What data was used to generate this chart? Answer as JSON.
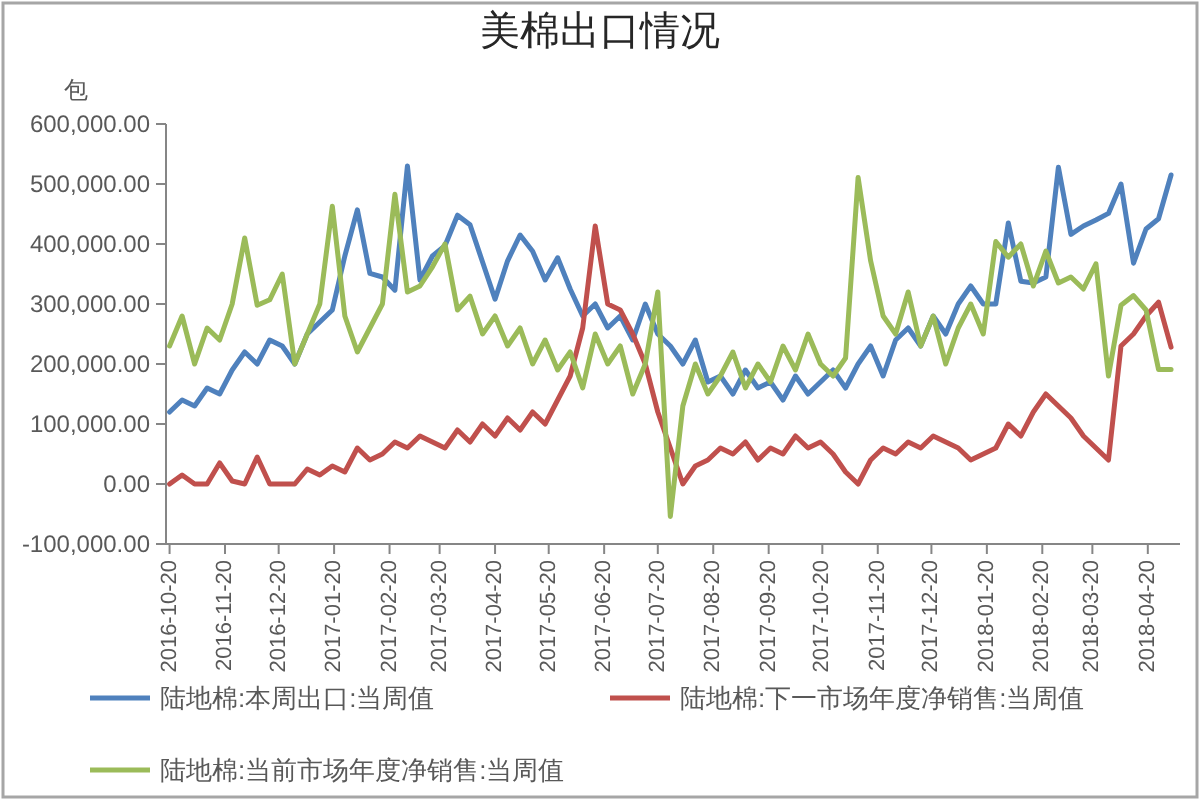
{
  "chart_data": {
    "type": "line",
    "title": "美棉出口情况",
    "ylabel": "包",
    "x": [
      "2016-10-20",
      "2016-10-27",
      "2016-11-03",
      "2016-11-10",
      "2016-11-17",
      "2016-11-24",
      "2016-12-01",
      "2016-12-08",
      "2016-12-15",
      "2016-12-22",
      "2016-12-29",
      "2017-01-05",
      "2017-01-12",
      "2017-01-19",
      "2017-01-26",
      "2017-02-02",
      "2017-02-09",
      "2017-02-16",
      "2017-02-23",
      "2017-03-02",
      "2017-03-09",
      "2017-03-16",
      "2017-03-23",
      "2017-03-30",
      "2017-04-06",
      "2017-04-13",
      "2017-04-20",
      "2017-04-27",
      "2017-05-04",
      "2017-05-11",
      "2017-05-18",
      "2017-05-25",
      "2017-06-01",
      "2017-06-08",
      "2017-06-15",
      "2017-06-22",
      "2017-06-29",
      "2017-07-06",
      "2017-07-13",
      "2017-07-20",
      "2017-07-27",
      "2017-08-03",
      "2017-08-10",
      "2017-08-17",
      "2017-08-24",
      "2017-08-31",
      "2017-09-07",
      "2017-09-14",
      "2017-09-21",
      "2017-09-28",
      "2017-10-05",
      "2017-10-12",
      "2017-10-19",
      "2017-10-26",
      "2017-11-02",
      "2017-11-09",
      "2017-11-16",
      "2017-11-23",
      "2017-11-30",
      "2017-12-07",
      "2017-12-14",
      "2017-12-21",
      "2017-12-28",
      "2018-01-04",
      "2018-01-11",
      "2018-01-18",
      "2018-01-25",
      "2018-02-01",
      "2018-02-08",
      "2018-02-15",
      "2018-02-22",
      "2018-03-01",
      "2018-03-08",
      "2018-03-15",
      "2018-03-22",
      "2018-03-29",
      "2018-04-05",
      "2018-04-12",
      "2018-04-19",
      "2018-04-26",
      "2018-05-03"
    ],
    "xlim": [
      "2016-10-18",
      "2018-05-08"
    ],
    "xticks": [
      "2016-10-20",
      "2016-11-20",
      "2016-12-20",
      "2017-01-20",
      "2017-02-20",
      "2017-03-20",
      "2017-04-20",
      "2017-05-20",
      "2017-06-20",
      "2017-07-20",
      "2017-08-20",
      "2017-09-20",
      "2017-10-20",
      "2017-11-20",
      "2017-12-20",
      "2018-01-20",
      "2018-02-20",
      "2018-03-20",
      "2018-04-20"
    ],
    "ylim": [
      -100000,
      600000
    ],
    "yticks": [
      {
        "value": -100000,
        "label": "-100,000.00"
      },
      {
        "value": 0,
        "label": "0.00"
      },
      {
        "value": 100000,
        "label": "100,000.00"
      },
      {
        "value": 200000,
        "label": "200,000.00"
      },
      {
        "value": 300000,
        "label": "300,000.00"
      },
      {
        "value": 400000,
        "label": "400,000.00"
      },
      {
        "value": 500000,
        "label": "500,000.00"
      },
      {
        "value": 600000,
        "label": "600,000.00"
      }
    ],
    "legend": "bottom",
    "series": [
      {
        "name": "陆地棉:本周出口:当周值",
        "color": "#4f81bd",
        "values": [
          120000,
          140000,
          130000,
          160000,
          150000,
          190000,
          220000,
          200000,
          240000,
          230000,
          200000,
          250000,
          270000,
          290000,
          380000,
          457000,
          351000,
          345000,
          323000,
          530000,
          340000,
          380000,
          397000,
          448000,
          432000,
          370000,
          308000,
          372000,
          415000,
          388000,
          340000,
          377000,
          325000,
          280000,
          300000,
          260000,
          280000,
          240000,
          300000,
          250000,
          230000,
          200000,
          240000,
          170000,
          180000,
          150000,
          190000,
          160000,
          170000,
          140000,
          180000,
          150000,
          170000,
          190000,
          160000,
          200000,
          230000,
          180000,
          240000,
          260000,
          230000,
          280000,
          250000,
          300000,
          330000,
          300000,
          300000,
          435000,
          338000,
          335000,
          345000,
          528000,
          416000,
          430000,
          440000,
          451000,
          500000,
          368000,
          425000,
          442000,
          515000
        ]
      },
      {
        "name": "陆地棉:下一市场年度净销售:当周值",
        "color": "#c0504d",
        "values": [
          0,
          15000,
          0,
          0,
          35000,
          5000,
          0,
          45000,
          0,
          0,
          0,
          25000,
          15000,
          30000,
          20000,
          60000,
          40000,
          50000,
          70000,
          60000,
          80000,
          70000,
          60000,
          90000,
          70000,
          100000,
          80000,
          110000,
          90000,
          120000,
          100000,
          140000,
          180000,
          260000,
          430000,
          300000,
          290000,
          250000,
          200000,
          120000,
          60000,
          0,
          30000,
          40000,
          60000,
          50000,
          70000,
          40000,
          60000,
          50000,
          80000,
          60000,
          70000,
          50000,
          20000,
          0,
          40000,
          60000,
          50000,
          70000,
          60000,
          80000,
          70000,
          60000,
          40000,
          50000,
          60000,
          100000,
          80000,
          120000,
          150000,
          130000,
          110000,
          80000,
          60000,
          40000,
          230000,
          250000,
          280000,
          303000,
          228000
        ]
      },
      {
        "name": "陆地棉:当前市场年度净销售:当周值",
        "color": "#9bbb59",
        "values": [
          230000,
          280000,
          200000,
          260000,
          240000,
          300000,
          410000,
          298000,
          307000,
          350000,
          200000,
          250000,
          300000,
          463000,
          280000,
          220000,
          260000,
          300000,
          483000,
          320000,
          330000,
          362000,
          400000,
          290000,
          313000,
          250000,
          280000,
          230000,
          260000,
          200000,
          240000,
          190000,
          220000,
          160000,
          250000,
          200000,
          230000,
          150000,
          200000,
          320000,
          -54000,
          130000,
          200000,
          150000,
          180000,
          220000,
          160000,
          200000,
          170000,
          230000,
          190000,
          250000,
          200000,
          180000,
          210000,
          511000,
          372000,
          280000,
          250000,
          320000,
          230000,
          280000,
          200000,
          260000,
          300000,
          250000,
          404000,
          378000,
          400000,
          330000,
          388000,
          335000,
          345000,
          325000,
          367000,
          180000,
          298000,
          314000,
          290000,
          191000,
          191000
        ]
      }
    ]
  }
}
